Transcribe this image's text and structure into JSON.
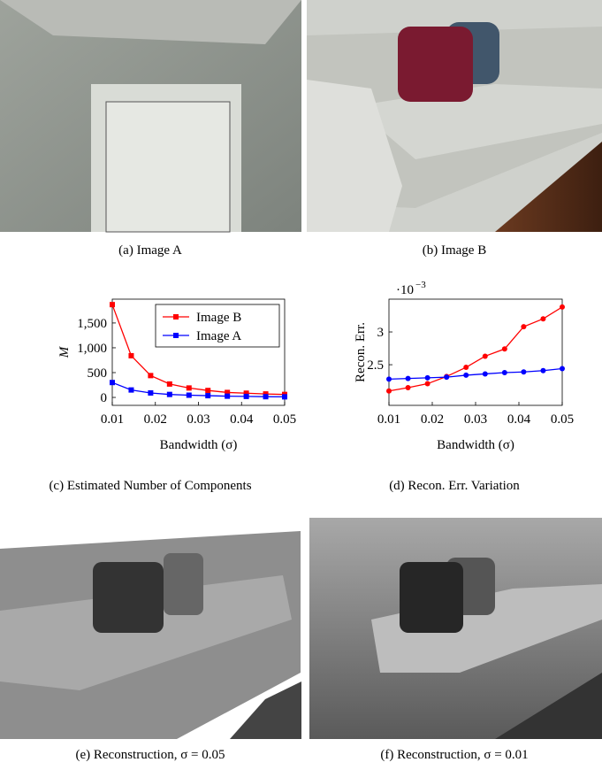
{
  "captions": {
    "a": "(a) Image A",
    "b": "(b) Image B",
    "c": "(c) Estimated Number of Components",
    "d": "(d) Recon. Err. Variation",
    "e": "(e) Reconstruction, σ = 0.05",
    "f": "(f) Reconstruction, σ = 0.01"
  },
  "chart_data": [
    {
      "type": "line",
      "x_label": "Bandwidth (σ)",
      "y_label": "M",
      "marker": "square",
      "legend": "upper right",
      "x": [
        0.01,
        0.0144,
        0.0189,
        0.0233,
        0.0278,
        0.0322,
        0.0367,
        0.0411,
        0.0456,
        0.05
      ],
      "series": [
        {
          "name": "Image B",
          "color": "#ff0000",
          "values": [
            1870,
            840,
            440,
            270,
            190,
            140,
            100,
            85,
            70,
            60
          ]
        },
        {
          "name": "Image A",
          "color": "#0000ff",
          "values": [
            300,
            150,
            90,
            60,
            45,
            35,
            25,
            20,
            15,
            12
          ]
        }
      ],
      "xlim": [
        0.01,
        0.05
      ],
      "xticks": [
        0.01,
        0.02,
        0.03,
        0.04,
        0.05
      ],
      "ylim": [
        -160,
        1980
      ],
      "yticks": [
        0,
        500,
        {
          "value": 1000,
          "label": "1,000"
        },
        {
          "value": 1500,
          "label": "1,500"
        }
      ]
    },
    {
      "type": "line",
      "x_label": "Bandwidth (σ)",
      "y_label": "Recon. Err.",
      "marker": "circle",
      "axis_multiplier": {
        "base": "·10",
        "exponent": "−3"
      },
      "x": [
        0.01,
        0.0144,
        0.0189,
        0.0233,
        0.0278,
        0.0322,
        0.0367,
        0.0411,
        0.0456,
        0.05
      ],
      "series": [
        {
          "name": "Image B",
          "color": "#ff0000",
          "values": [
            2.1,
            2.15,
            2.21,
            2.32,
            2.46,
            2.63,
            2.74,
            3.08,
            3.2,
            3.38
          ]
        },
        {
          "name": "Image A",
          "color": "#0000ff",
          "values": [
            2.28,
            2.29,
            2.3,
            2.31,
            2.34,
            2.36,
            2.38,
            2.39,
            2.41,
            2.44
          ]
        }
      ],
      "xlim": [
        0.01,
        0.05
      ],
      "xticks": [
        0.01,
        0.02,
        0.03,
        0.04,
        0.05
      ],
      "ylim": [
        1.88,
        3.5
      ],
      "yticks": [
        2.5,
        3
      ]
    }
  ]
}
